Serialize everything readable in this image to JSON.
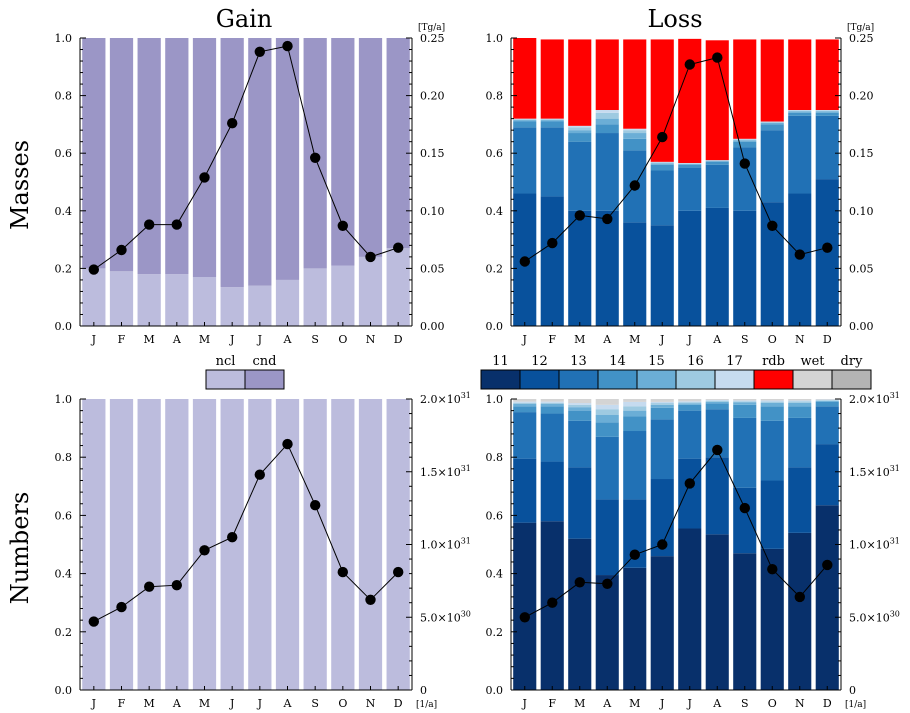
{
  "column_titles": [
    "Gain",
    "Loss"
  ],
  "row_titles": [
    "Masses",
    "Numbers"
  ],
  "months": [
    "J",
    "F",
    "M",
    "A",
    "M",
    "J",
    "J",
    "A",
    "S",
    "O",
    "N",
    "D"
  ],
  "left_ticks": [
    "0.0",
    "0.2",
    "0.4",
    "0.6",
    "0.8",
    "1.0"
  ],
  "mass_unit": "[Tg/a]",
  "number_unit": "[1/a]",
  "mass_right_ticks": [
    "0.00",
    "0.05",
    "0.10",
    "0.15",
    "0.20",
    "0.25"
  ],
  "number_right_ticks": [
    {
      "m": "0",
      "e": ""
    },
    {
      "m": "5.0×10",
      "e": "30"
    },
    {
      "m": "1.0×10",
      "e": "31"
    },
    {
      "m": "1.5×10",
      "e": "31"
    },
    {
      "m": "2.0×10",
      "e": "31"
    }
  ],
  "legend_gain": [
    {
      "label": "ncl",
      "color": "#bcbcdd"
    },
    {
      "label": "cnd",
      "color": "#9b96c6"
    }
  ],
  "legend_loss": [
    {
      "label": "11",
      "color": "#08306b"
    },
    {
      "label": "12",
      "color": "#08519c"
    },
    {
      "label": "13",
      "color": "#2171b5"
    },
    {
      "label": "14",
      "color": "#4292c6"
    },
    {
      "label": "15",
      "color": "#6baed6"
    },
    {
      "label": "16",
      "color": "#9ecae1"
    },
    {
      "label": "17",
      "color": "#c6dbef"
    },
    {
      "label": "rdb",
      "color": "#ff0000"
    },
    {
      "label": "wet",
      "color": "#d4d4d4"
    },
    {
      "label": "dry",
      "color": "#b4b4b4"
    }
  ],
  "chart_data": [
    {
      "type": "bar",
      "panel": "Masses Gain",
      "stacked": true,
      "title": "Gain",
      "ylabel": "Masses",
      "categories": [
        "J",
        "F",
        "M",
        "A",
        "M",
        "J",
        "J",
        "A",
        "S",
        "O",
        "N",
        "D"
      ],
      "ylim": [
        0,
        1
      ],
      "series": [
        {
          "name": "ncl",
          "values": [
            0.2,
            0.19,
            0.18,
            0.18,
            0.17,
            0.135,
            0.14,
            0.16,
            0.2,
            0.21,
            0.24,
            0.27
          ]
        },
        {
          "name": "cnd",
          "values": [
            0.8,
            0.81,
            0.82,
            0.82,
            0.83,
            0.865,
            0.86,
            0.84,
            0.8,
            0.79,
            0.76,
            0.73
          ]
        }
      ],
      "line": {
        "unit": "[Tg/a]",
        "ylim": [
          0,
          0.25
        ],
        "values": [
          0.049,
          0.066,
          0.088,
          0.088,
          0.129,
          0.176,
          0.238,
          0.243,
          0.146,
          0.087,
          0.06,
          0.068
        ]
      }
    },
    {
      "type": "bar",
      "panel": "Masses Loss",
      "stacked": true,
      "title": "Loss",
      "categories": [
        "J",
        "F",
        "M",
        "A",
        "M",
        "J",
        "J",
        "A",
        "S",
        "O",
        "N",
        "D"
      ],
      "ylim": [
        0,
        1
      ],
      "series": [
        {
          "name": "11",
          "values": [
            0,
            0,
            0,
            0,
            0,
            0,
            0,
            0,
            0,
            0,
            0,
            0
          ]
        },
        {
          "name": "12",
          "values": [
            0.46,
            0.45,
            0.4,
            0.4,
            0.36,
            0.35,
            0.4,
            0.41,
            0.4,
            0.43,
            0.46,
            0.51
          ]
        },
        {
          "name": "13",
          "values": [
            0.23,
            0.24,
            0.24,
            0.27,
            0.25,
            0.19,
            0.15,
            0.15,
            0.22,
            0.25,
            0.27,
            0.22
          ]
        },
        {
          "name": "14",
          "values": [
            0.02,
            0.02,
            0.03,
            0.03,
            0.04,
            0.02,
            0.01,
            0.01,
            0.02,
            0.02,
            0.01,
            0.01
          ]
        },
        {
          "name": "15",
          "values": [
            0.005,
            0.005,
            0.01,
            0.02,
            0.02,
            0.005,
            0.003,
            0.003,
            0.005,
            0.005,
            0.005,
            0.005
          ]
        },
        {
          "name": "16",
          "values": [
            0.003,
            0.003,
            0.01,
            0.02,
            0.01,
            0.003,
            0.002,
            0.002,
            0.003,
            0.003,
            0.003,
            0.003
          ]
        },
        {
          "name": "17",
          "values": [
            0.002,
            0.002,
            0.005,
            0.01,
            0.005,
            0.002,
            0.001,
            0.001,
            0.002,
            0.002,
            0.002,
            0.002
          ]
        },
        {
          "name": "rdb",
          "values": [
            0.28,
            0.275,
            0.3,
            0.245,
            0.31,
            0.425,
            0.431,
            0.416,
            0.345,
            0.285,
            0.245,
            0.245
          ]
        },
        {
          "name": "wet",
          "values": [
            0,
            0,
            0,
            0,
            0,
            0,
            0,
            0,
            0,
            0,
            0,
            0
          ]
        },
        {
          "name": "dry",
          "values": [
            0,
            0,
            0,
            0,
            0,
            0,
            0,
            0,
            0,
            0,
            0,
            0
          ]
        }
      ],
      "line": {
        "unit": "[Tg/a]",
        "ylim": [
          0,
          0.25
        ],
        "values": [
          0.056,
          0.072,
          0.096,
          0.093,
          0.122,
          0.164,
          0.227,
          0.233,
          0.141,
          0.087,
          0.062,
          0.068
        ]
      }
    },
    {
      "type": "bar",
      "panel": "Numbers Gain",
      "stacked": true,
      "ylabel": "Numbers",
      "categories": [
        "J",
        "F",
        "M",
        "A",
        "M",
        "J",
        "J",
        "A",
        "S",
        "O",
        "N",
        "D"
      ],
      "ylim": [
        0,
        1
      ],
      "series": [
        {
          "name": "ncl",
          "values": [
            1,
            1,
            1,
            1,
            1,
            1,
            1,
            1,
            1,
            1,
            1,
            1
          ]
        },
        {
          "name": "cnd",
          "values": [
            0,
            0,
            0,
            0,
            0,
            0,
            0,
            0,
            0,
            0,
            0,
            0
          ]
        }
      ],
      "line": {
        "unit": "[1/a]",
        "ylim": [
          0,
          2e+31
        ],
        "values": [
          4.7e+30,
          5.7e+30,
          7.1e+30,
          7.2e+30,
          9.6e+30,
          1.05e+31,
          1.48e+31,
          1.69e+31,
          1.27e+31,
          8.1e+30,
          6.2e+30,
          8.1e+30
        ]
      }
    },
    {
      "type": "bar",
      "panel": "Numbers Loss",
      "stacked": true,
      "categories": [
        "J",
        "F",
        "M",
        "A",
        "M",
        "J",
        "J",
        "A",
        "S",
        "O",
        "N",
        "D"
      ],
      "ylim": [
        0,
        1
      ],
      "series": [
        {
          "name": "11",
          "values": [
            0.575,
            0.58,
            0.52,
            0.395,
            0.42,
            0.46,
            0.555,
            0.535,
            0.47,
            0.485,
            0.54,
            0.635
          ]
        },
        {
          "name": "12",
          "values": [
            0.22,
            0.205,
            0.245,
            0.26,
            0.235,
            0.265,
            0.24,
            0.265,
            0.225,
            0.235,
            0.225,
            0.21
          ]
        },
        {
          "name": "13",
          "values": [
            0.16,
            0.165,
            0.16,
            0.215,
            0.235,
            0.205,
            0.165,
            0.165,
            0.24,
            0.205,
            0.17,
            0.13
          ]
        },
        {
          "name": "14",
          "values": [
            0.02,
            0.025,
            0.035,
            0.05,
            0.05,
            0.04,
            0.02,
            0.02,
            0.045,
            0.05,
            0.04,
            0.015
          ]
        },
        {
          "name": "15",
          "values": [
            0.008,
            0.008,
            0.012,
            0.025,
            0.02,
            0.01,
            0.005,
            0.005,
            0.008,
            0.012,
            0.012,
            0.004
          ]
        },
        {
          "name": "16",
          "values": [
            0.004,
            0.004,
            0.008,
            0.02,
            0.015,
            0.006,
            0.004,
            0.004,
            0.004,
            0.004,
            0.005,
            0.002
          ]
        },
        {
          "name": "17",
          "values": [
            0.004,
            0.004,
            0.006,
            0.015,
            0.015,
            0.004,
            0.003,
            0.003,
            0.003,
            0.004,
            0.003,
            0.002
          ]
        },
        {
          "name": "rdb",
          "values": [
            0,
            0,
            0,
            0,
            0,
            0,
            0,
            0,
            0,
            0,
            0,
            0
          ]
        },
        {
          "name": "wet",
          "values": [
            0.009,
            0.009,
            0.014,
            0.02,
            0.01,
            0.01,
            0.008,
            0.003,
            0.005,
            0.005,
            0.005,
            0.002
          ]
        },
        {
          "name": "dry",
          "values": [
            0,
            0,
            0,
            0,
            0,
            0,
            0,
            0,
            0,
            0,
            0,
            0
          ]
        }
      ],
      "line": {
        "unit": "[1/a]",
        "ylim": [
          0,
          2e+31
        ],
        "values": [
          5e+30,
          6e+30,
          7.4e+30,
          7.3e+30,
          9.3e+30,
          1e+31,
          1.42e+31,
          1.65e+31,
          1.25e+31,
          8.3e+30,
          6.4e+30,
          8.6e+30
        ]
      }
    }
  ]
}
